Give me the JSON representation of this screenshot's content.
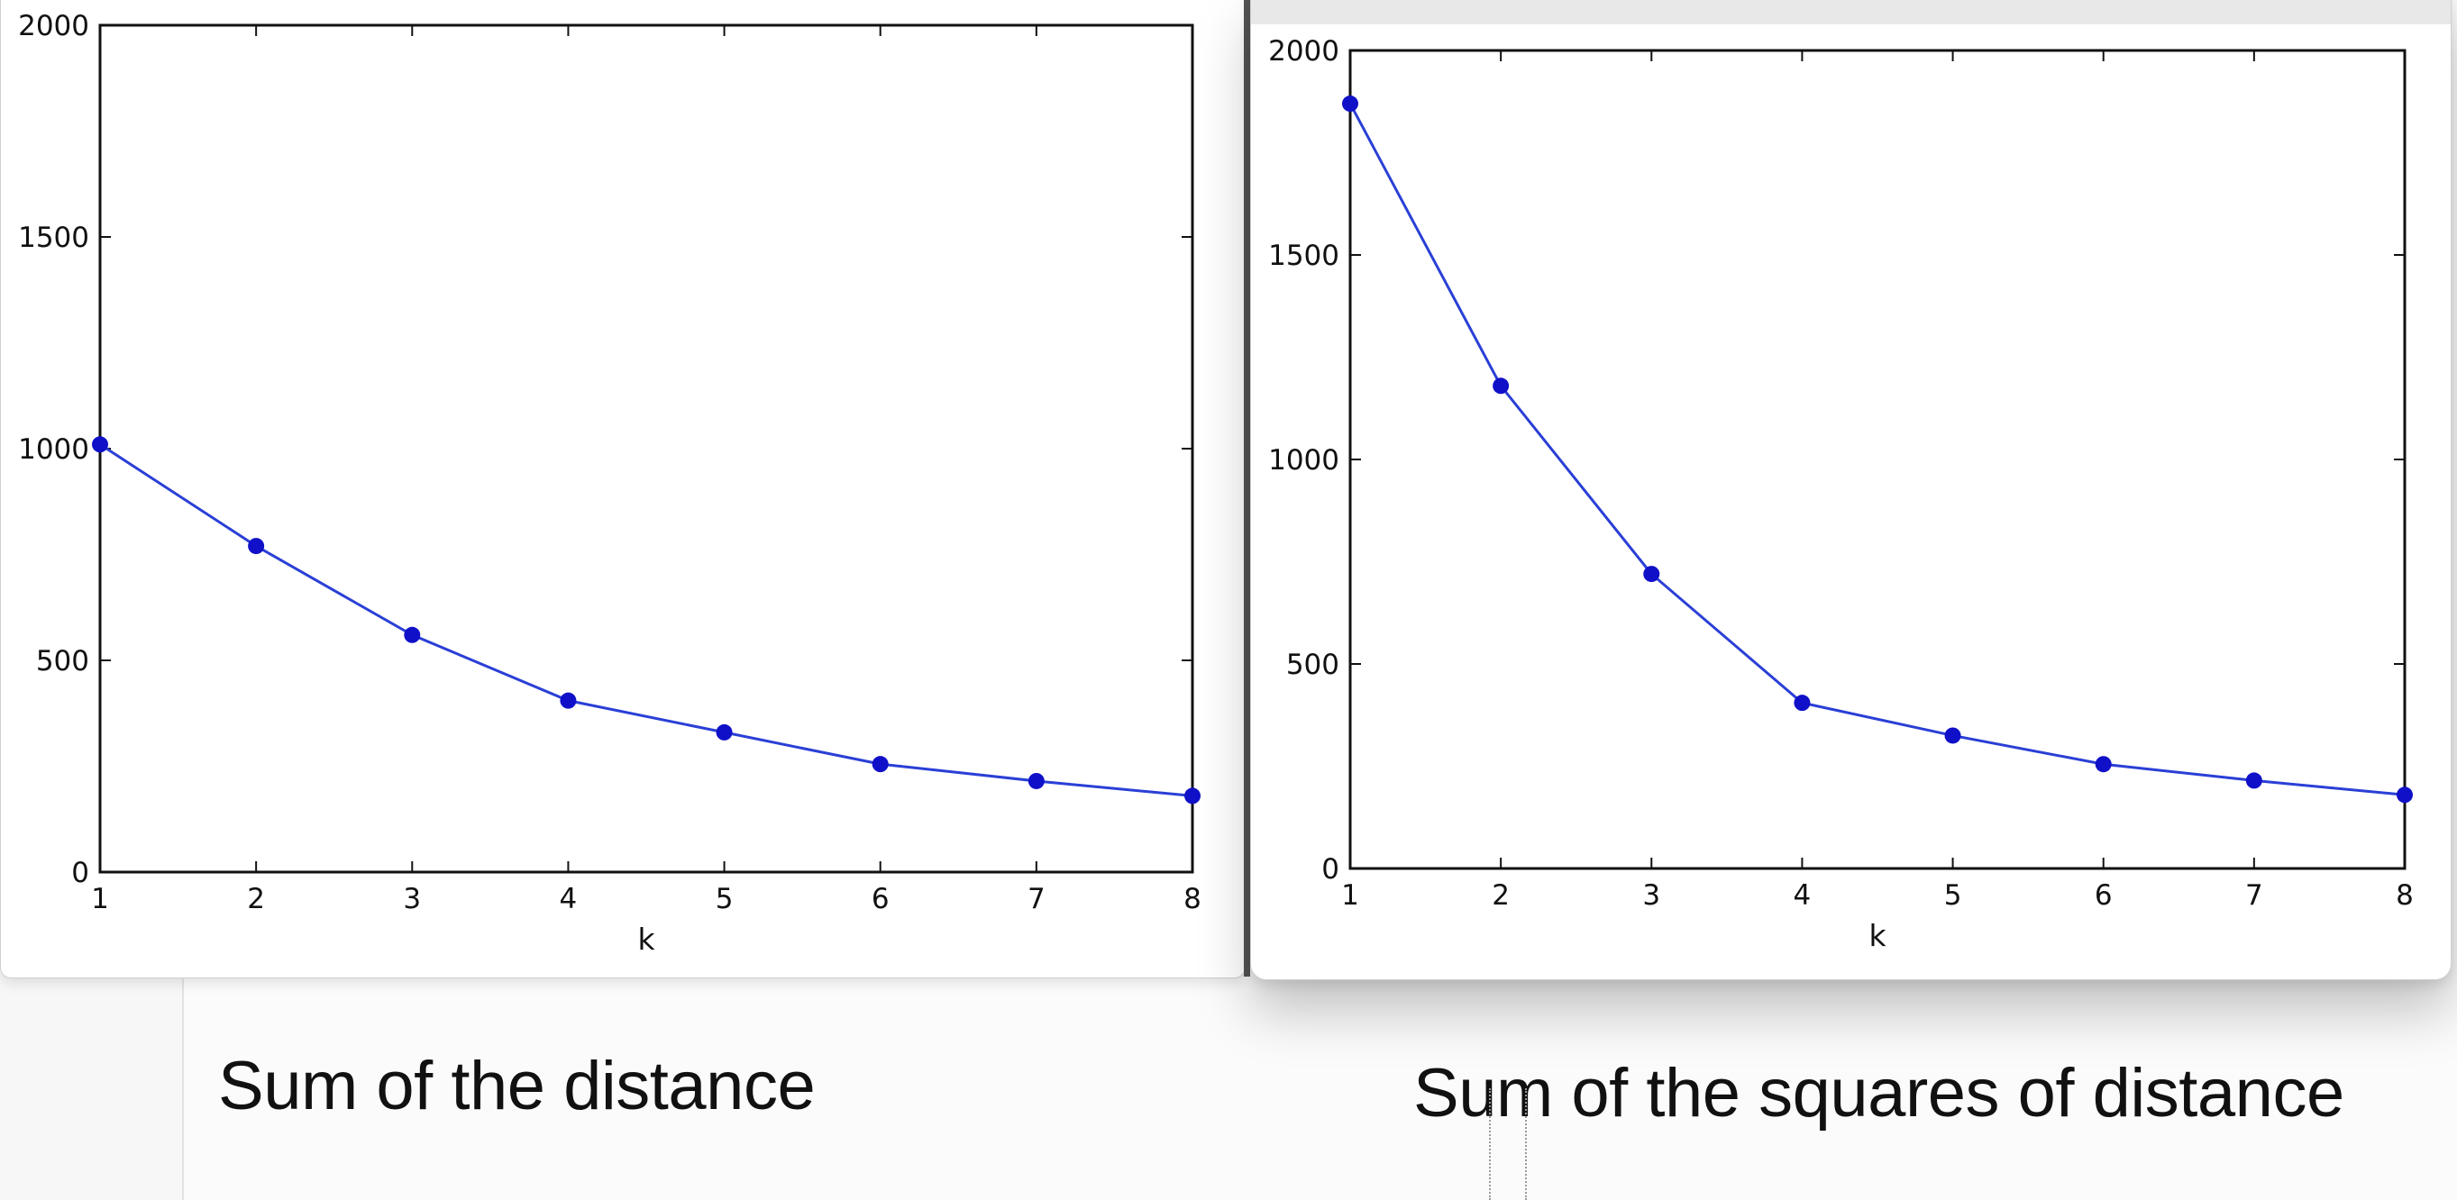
{
  "captions": {
    "left": "Sum of the distance",
    "right": "Sum of the squares of distance"
  },
  "colors": {
    "line": "#2a3fd6",
    "marker": "#1010c8",
    "axis": "#111111"
  },
  "chart_data": [
    {
      "type": "line",
      "x": [
        1,
        2,
        3,
        4,
        5,
        6,
        7,
        8
      ],
      "values": [
        1010,
        770,
        560,
        405,
        330,
        255,
        215,
        180
      ],
      "xlabel": "k",
      "ylabel": "",
      "xlim": [
        1,
        8
      ],
      "ylim": [
        0,
        2000
      ],
      "xticks": [
        "1",
        "2",
        "3",
        "4",
        "5",
        "6",
        "7",
        "8"
      ],
      "yticks": [
        "0",
        "500",
        "1000",
        "1500",
        "2000"
      ],
      "grid": false
    },
    {
      "type": "line",
      "x": [
        1,
        2,
        3,
        4,
        5,
        6,
        7,
        8
      ],
      "values": [
        1870,
        1180,
        720,
        405,
        325,
        255,
        215,
        180
      ],
      "xlabel": "k",
      "ylabel": "",
      "xlim": [
        1,
        8
      ],
      "ylim": [
        0,
        2000
      ],
      "xticks": [
        "1",
        "2",
        "3",
        "4",
        "5",
        "6",
        "7",
        "8"
      ],
      "yticks": [
        "0",
        "500",
        "1000",
        "1500",
        "2000"
      ],
      "grid": false
    }
  ]
}
